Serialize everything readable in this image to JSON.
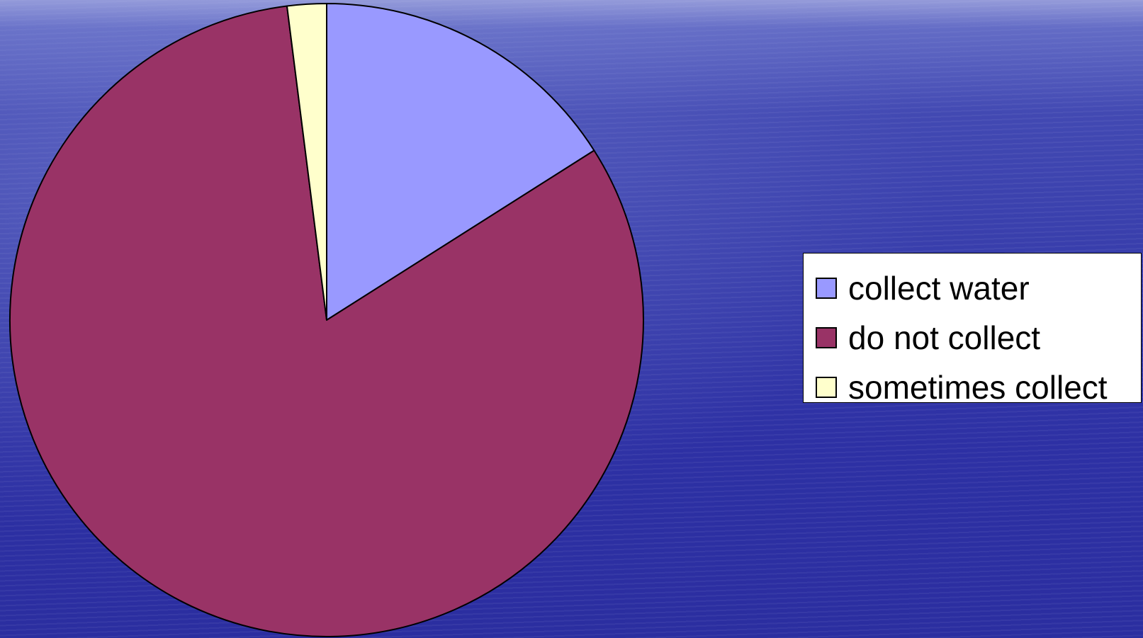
{
  "colors": {
    "collect_water": "#9999ff",
    "do_not_collect": "#993366",
    "sometimes_collect": "#ffffcc",
    "slice_border": "#000000"
  },
  "chart_data": {
    "type": "pie",
    "title": "",
    "categories": [
      "collect water",
      "do not collect",
      "sometimes collect"
    ],
    "values": [
      16,
      82,
      2
    ],
    "start_angle": "12 o'clock, clockwise",
    "legend": "right"
  },
  "legend": {
    "items": [
      {
        "label": "collect water",
        "color": "#9999ff"
      },
      {
        "label": "do not collect",
        "color": "#993366"
      },
      {
        "label": "sometimes collect",
        "color": "#ffffcc"
      }
    ]
  }
}
